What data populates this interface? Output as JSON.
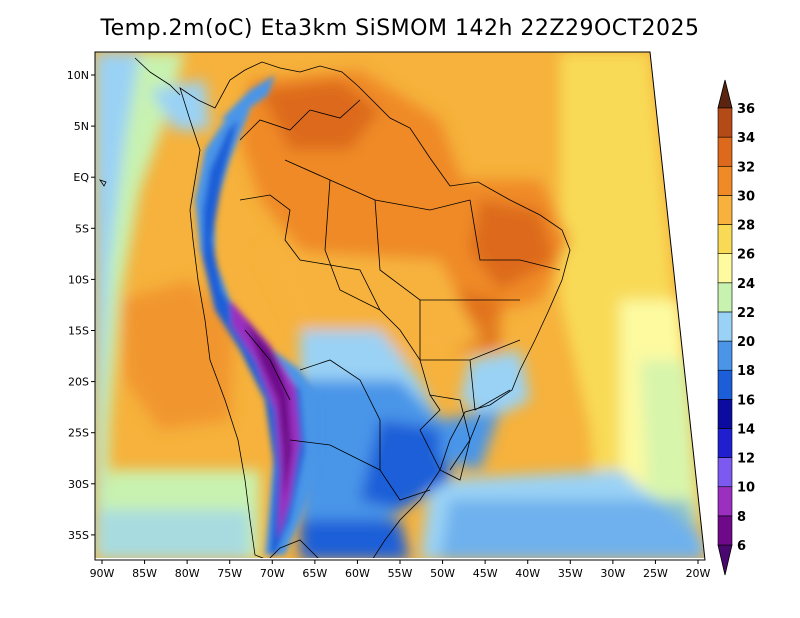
{
  "title": "Temp.2m(oC) Eta3km SiSMOM 142h 22Z29OCT2025",
  "chart_data": {
    "type": "heatmap",
    "title": "Temp.2m(oC) Eta3km SiSMOM 142h 22Z29OCT2025",
    "variable": "2 m air temperature",
    "units": "oC",
    "lon_range": [
      -90,
      -20
    ],
    "lat_range": [
      -38,
      12
    ],
    "lat_ticks": [
      "10N",
      "5N",
      "EQ",
      "5S",
      "10S",
      "15S",
      "20S",
      "25S",
      "30S",
      "35S"
    ],
    "lat_tick_values": [
      10,
      5,
      0,
      -5,
      -10,
      -15,
      -20,
      -25,
      -30,
      -35
    ],
    "lon_ticks": [
      "90W",
      "85W",
      "80W",
      "75W",
      "70W",
      "65W",
      "60W",
      "55W",
      "50W",
      "45W",
      "40W",
      "35W",
      "30W",
      "25W",
      "20W"
    ],
    "lon_tick_values": [
      -90,
      -85,
      -80,
      -75,
      -70,
      -65,
      -60,
      -55,
      -50,
      -45,
      -40,
      -35,
      -30,
      -25,
      -20
    ],
    "colorbar": {
      "levels": [
        6,
        8,
        10,
        12,
        14,
        16,
        18,
        20,
        22,
        24,
        26,
        28,
        30,
        32,
        34,
        36
      ],
      "labels": [
        "6",
        "8",
        "10",
        "12",
        "14",
        "16",
        "18",
        "20",
        "22",
        "24",
        "26",
        "28",
        "30",
        "32",
        "34",
        "36"
      ],
      "colors": [
        "#6e0a8a",
        "#9a2fc0",
        "#7c5af0",
        "#1f1fd0",
        "#0b0ba0",
        "#1c5ed8",
        "#4a95e8",
        "#9ad2f5",
        "#c8f2b0",
        "#fdfaa0",
        "#f8da56",
        "#f6b23c",
        "#ef8a26",
        "#dd6a1c",
        "#b44a16",
        "#7a2f10"
      ],
      "under_color": "#4a0770",
      "over_color": "#5a2410"
    }
  }
}
